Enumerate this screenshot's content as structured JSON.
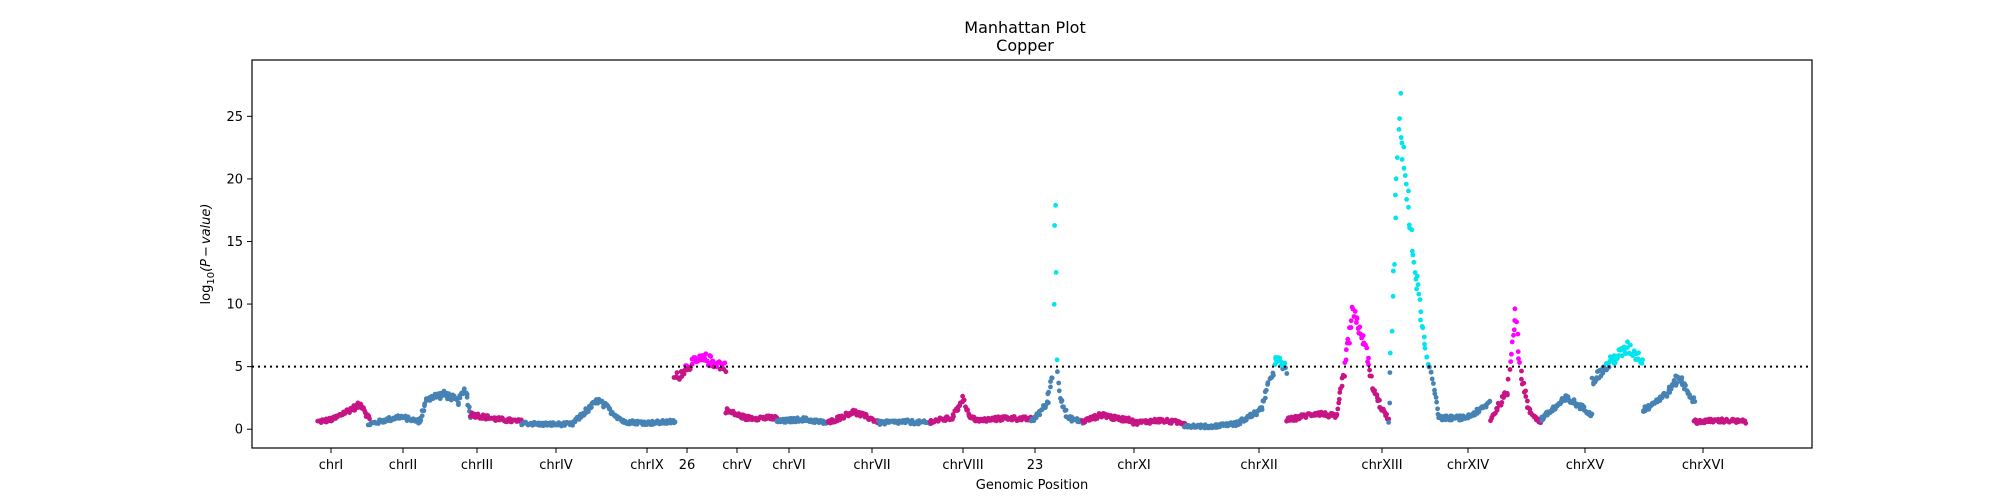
{
  "chart_data": {
    "type": "scatter",
    "title": "Manhattan Plot",
    "subtitle": "Copper",
    "xlabel": "Genomic Position",
    "ylabel_parts": [
      "log",
      "10",
      "(P",
      "−",
      "value)"
    ],
    "ylim": [
      -1.5,
      29.5
    ],
    "yticks": [
      0,
      5,
      10,
      15,
      20,
      25
    ],
    "threshold": 5,
    "grid": false,
    "colors": {
      "steelblue": "#4682b4",
      "mediumvioletred": "#c71585",
      "magenta": "#ff00ff",
      "cyan": "#00e5ee",
      "threshold_line": "#000000"
    },
    "xtick_labels": [
      {
        "label": "chrI",
        "index": 0
      },
      {
        "label": "chrII",
        "index": 1
      },
      {
        "label": "chrIII",
        "index": 2
      },
      {
        "label": "chrIV",
        "index": 3
      },
      {
        "label": "chrIX",
        "index": 4
      },
      {
        "label": "26",
        "index": 5
      },
      {
        "label": "chrV",
        "index": 6
      },
      {
        "label": "chrVI",
        "index": 7
      },
      {
        "label": "chrVII",
        "index": 8
      },
      {
        "label": "chrVIII",
        "index": 9
      },
      {
        "label": "23",
        "index": 10
      },
      {
        "label": "chrXI",
        "index": 11
      },
      {
        "label": "chrXII",
        "index": 12
      },
      {
        "label": "chrXIII",
        "index": 13
      },
      {
        "label": "chrXIV",
        "index": 14
      },
      {
        "label": "chrXV",
        "index": 15
      },
      {
        "label": "chrXVI",
        "index": 16
      }
    ],
    "segments": [
      {
        "color": "mediumvioletred",
        "hi_color": "magenta",
        "pts": [
          [
            0,
            0.6
          ],
          [
            0.3,
            0.8
          ],
          [
            0.6,
            1.5
          ],
          [
            0.85,
            2.0
          ],
          [
            1,
            0.8
          ]
        ]
      },
      {
        "color": "steelblue",
        "hi_color": "cyan",
        "pts": [
          [
            0,
            0.4
          ],
          [
            0.3,
            0.7
          ],
          [
            0.6,
            1.0
          ],
          [
            1,
            0.6
          ]
        ]
      },
      {
        "color": "steelblue",
        "hi_color": "cyan",
        "pts": [
          [
            0,
            0.8
          ],
          [
            0.15,
            2.5
          ],
          [
            0.5,
            2.8
          ],
          [
            0.75,
            2.2
          ],
          [
            0.9,
            3.2
          ],
          [
            1,
            1.0
          ]
        ]
      },
      {
        "color": "mediumvioletred",
        "hi_color": "magenta",
        "pts": [
          [
            0,
            1.2
          ],
          [
            0.5,
            0.8
          ],
          [
            1,
            0.6
          ]
        ]
      },
      {
        "color": "steelblue",
        "hi_color": "cyan",
        "pts": [
          [
            0,
            0.5
          ],
          [
            0.35,
            0.4
          ],
          [
            1,
            0.4
          ]
        ]
      },
      {
        "color": "steelblue",
        "hi_color": "cyan",
        "pts": [
          [
            0,
            0.5
          ],
          [
            0.5,
            2.3
          ],
          [
            1,
            0.6
          ]
        ]
      },
      {
        "color": "steelblue",
        "hi_color": "cyan",
        "pts": [
          [
            0,
            0.6
          ],
          [
            0.5,
            0.5
          ],
          [
            1,
            0.6
          ]
        ]
      },
      {
        "color": "mediumvioletred",
        "hi_color": "magenta",
        "pts": [
          [
            0,
            4.0
          ],
          [
            0.3,
            5.2
          ],
          [
            0.6,
            5.6
          ],
          [
            1,
            5.0
          ]
        ]
      },
      {
        "color": "mediumvioletred",
        "hi_color": "magenta",
        "pts": [
          [
            0,
            1.5
          ],
          [
            0.4,
            0.9
          ],
          [
            1,
            0.9
          ]
        ]
      },
      {
        "color": "steelblue",
        "hi_color": "cyan",
        "pts": [
          [
            0,
            0.6
          ],
          [
            0.5,
            0.8
          ],
          [
            1,
            0.5
          ]
        ]
      },
      {
        "color": "mediumvioletred",
        "hi_color": "magenta",
        "pts": [
          [
            0,
            0.5
          ],
          [
            0.5,
            1.4
          ],
          [
            1,
            0.6
          ]
        ]
      },
      {
        "color": "steelblue",
        "hi_color": "cyan",
        "pts": [
          [
            0,
            0.5
          ],
          [
            0.5,
            0.6
          ],
          [
            1,
            0.5
          ]
        ]
      },
      {
        "color": "mediumvioletred",
        "hi_color": "magenta",
        "pts": [
          [
            0,
            0.6
          ],
          [
            0.45,
            0.9
          ],
          [
            0.65,
            2.5
          ],
          [
            0.8,
            0.9
          ],
          [
            1,
            0.7
          ]
        ]
      },
      {
        "color": "mediumvioletred",
        "hi_color": "magenta",
        "pts": [
          [
            0,
            0.7
          ],
          [
            0.5,
            0.9
          ],
          [
            1,
            0.8
          ]
        ]
      },
      {
        "color": "steelblue",
        "hi_color": "cyan",
        "pts": [
          [
            0,
            0.6
          ],
          [
            0.3,
            2.0
          ],
          [
            0.42,
            4.5
          ],
          [
            0.46,
            21.0
          ],
          [
            0.5,
            5.5
          ],
          [
            0.56,
            2.8
          ],
          [
            0.7,
            0.9
          ],
          [
            1,
            0.6
          ]
        ]
      },
      {
        "color": "mediumvioletred",
        "hi_color": "magenta",
        "pts": [
          [
            0,
            0.6
          ],
          [
            0.4,
            1.2
          ],
          [
            0.6,
            0.9
          ],
          [
            1,
            0.7
          ]
        ]
      },
      {
        "color": "mediumvioletred",
        "hi_color": "magenta",
        "pts": [
          [
            0,
            0.5
          ],
          [
            0.5,
            0.7
          ],
          [
            1,
            0.5
          ]
        ]
      },
      {
        "color": "steelblue",
        "hi_color": "cyan",
        "pts": [
          [
            0,
            0.3
          ],
          [
            0.5,
            0.2
          ],
          [
            0.85,
            0.4
          ],
          [
            1,
            0.4
          ]
        ]
      },
      {
        "color": "steelblue",
        "hi_color": "cyan",
        "pts": [
          [
            0,
            0.4
          ],
          [
            0.5,
            1.5
          ],
          [
            0.8,
            5.5
          ],
          [
            1,
            4.8
          ]
        ]
      },
      {
        "color": "mediumvioletred",
        "hi_color": "magenta",
        "pts": [
          [
            0,
            0.7
          ],
          [
            0.3,
            1.0
          ],
          [
            0.6,
            1.3
          ],
          [
            1,
            1.0
          ]
        ]
      },
      {
        "color": "mediumvioletred",
        "hi_color": "magenta",
        "pts": [
          [
            0,
            1.5
          ],
          [
            0.15,
            5.0
          ],
          [
            0.3,
            9.2
          ],
          [
            0.45,
            8.0
          ],
          [
            0.55,
            6.5
          ],
          [
            0.7,
            3.2
          ],
          [
            0.85,
            1.8
          ],
          [
            1,
            0.8
          ]
        ]
      },
      {
        "color": "steelblue",
        "hi_color": "cyan",
        "pts": [
          [
            0,
            0.4
          ],
          [
            0.22,
            26.0
          ],
          [
            0.3,
            22.0
          ],
          [
            0.45,
            15.0
          ],
          [
            0.6,
            10.5
          ],
          [
            0.75,
            5.5
          ],
          [
            0.85,
            4.5
          ],
          [
            1,
            1.0
          ]
        ]
      },
      {
        "color": "steelblue",
        "hi_color": "cyan",
        "pts": [
          [
            0,
            0.9
          ],
          [
            0.5,
            0.9
          ],
          [
            0.8,
            1.5
          ],
          [
            1,
            2.2
          ]
        ]
      },
      {
        "color": "mediumvioletred",
        "hi_color": "magenta",
        "pts": [
          [
            0,
            0.8
          ],
          [
            0.35,
            3.0
          ],
          [
            0.45,
            8.0
          ],
          [
            0.5,
            9.5
          ],
          [
            0.58,
            5.0
          ],
          [
            0.75,
            1.5
          ],
          [
            1,
            0.5
          ]
        ]
      },
      {
        "color": "steelblue",
        "hi_color": "cyan",
        "pts": [
          [
            0,
            0.8
          ],
          [
            0.5,
            2.5
          ],
          [
            1,
            1.2
          ]
        ]
      },
      {
        "color": "steelblue",
        "hi_color": "cyan",
        "pts": [
          [
            0,
            3.8
          ],
          [
            0.4,
            5.5
          ],
          [
            0.7,
            6.5
          ],
          [
            1,
            5.5
          ]
        ]
      },
      {
        "color": "steelblue",
        "hi_color": "cyan",
        "pts": [
          [
            0,
            1.5
          ],
          [
            0.5,
            3.0
          ],
          [
            0.7,
            4.2
          ],
          [
            1,
            2.2
          ]
        ]
      },
      {
        "color": "mediumvioletred",
        "hi_color": "magenta",
        "pts": [
          [
            0,
            0.6
          ],
          [
            0.5,
            0.7
          ],
          [
            1,
            0.6
          ]
        ]
      }
    ]
  }
}
